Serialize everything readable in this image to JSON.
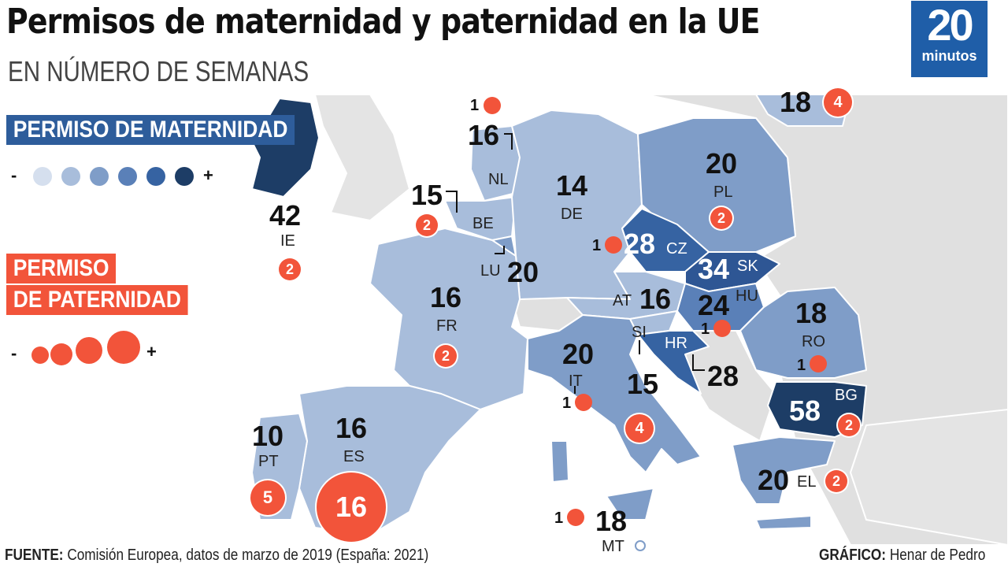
{
  "title": "Permisos de maternidad y paternidad en la UE",
  "subtitle": "EN NÚMERO DE SEMANAS",
  "logo": {
    "number": "20",
    "word": "minutos",
    "color": "#1f5ea8"
  },
  "legend": {
    "maternity_title": "PERMISO DE MATERNIDAD",
    "paternity_title_line1": "PERMISO",
    "paternity_title_line2": "DE PATERNIDAD",
    "minus": "-",
    "plus": "+",
    "maternity_scale_colors": [
      "#d5dfee",
      "#a8bddb",
      "#7f9dc8",
      "#5a80b8",
      "#3663a2",
      "#1d3d66"
    ],
    "paternity_color": "#f2543a"
  },
  "countries": [
    {
      "code": "IE",
      "maternity": "42",
      "paternity": "2"
    },
    {
      "code": "NL",
      "maternity": "16",
      "paternity": "1"
    },
    {
      "code": "BE",
      "maternity": "15",
      "paternity": "2"
    },
    {
      "code": "LU",
      "maternity": "20"
    },
    {
      "code": "DE",
      "maternity": "14"
    },
    {
      "code": "PL",
      "maternity": "20",
      "paternity": "2"
    },
    {
      "code": "CZ",
      "maternity": "28",
      "paternity": "1"
    },
    {
      "code": "SK",
      "maternity": "34"
    },
    {
      "code": "AT",
      "maternity": "16"
    },
    {
      "code": "HU",
      "maternity": "24",
      "paternity": "1"
    },
    {
      "code": "FR",
      "maternity": "16",
      "paternity": "2"
    },
    {
      "code": "SI",
      "maternity": "15",
      "paternity": "4"
    },
    {
      "code": "HR",
      "maternity": "28"
    },
    {
      "code": "IT",
      "maternity": "20",
      "paternity": "1"
    },
    {
      "code": "RO",
      "maternity": "18",
      "paternity": "1"
    },
    {
      "code": "BG",
      "maternity": "58",
      "paternity": "2"
    },
    {
      "code": "EL",
      "maternity": "20",
      "paternity": "2"
    },
    {
      "code": "PT",
      "maternity": "10",
      "paternity": "5"
    },
    {
      "code": "ES",
      "maternity": "16",
      "paternity": "16"
    },
    {
      "code": "MT",
      "maternity": "18",
      "paternity": "1"
    },
    {
      "code": "LT",
      "maternity": "18",
      "paternity": "4"
    }
  ],
  "footer": {
    "source_label": "FUENTE:",
    "source_text": " Comisión Europea, datos de marzo de 2019 (España: 2021)",
    "credit_label": "GRÁFICO:",
    "credit_text": " Henar de Pedro"
  }
}
